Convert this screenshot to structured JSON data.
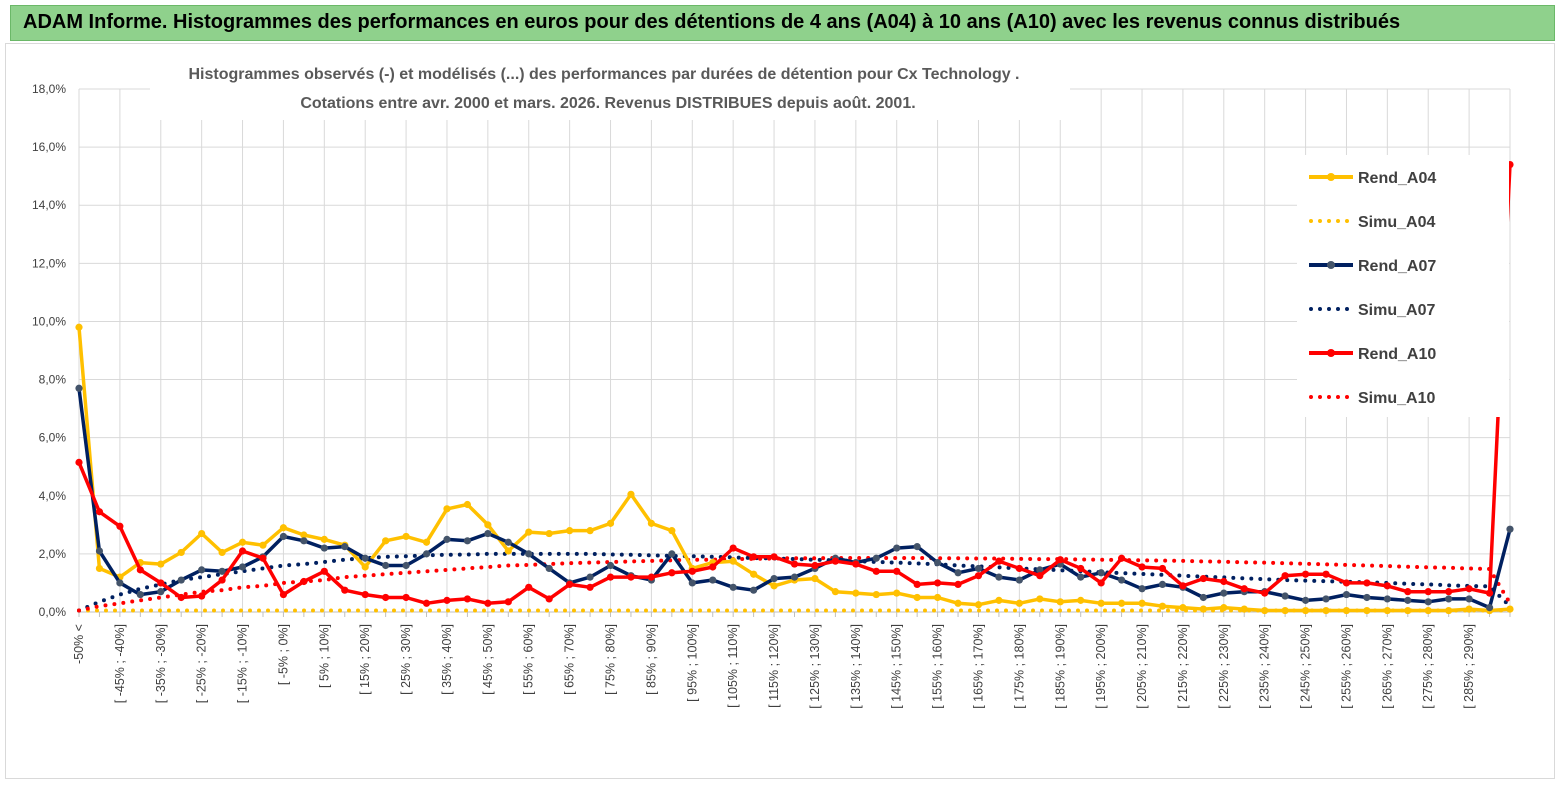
{
  "banner": {
    "text": "ADAM Informe. Histogrammes des performances en euros pour des détentions de 4 ans (A04) à 10 ans (A10) avec les revenus connus distribués"
  },
  "chart_data": {
    "type": "line",
    "title": "Histogrammes observés (-) et modélisés (...) des performances par durées de détention pour Cx Technology .",
    "subtitle": "Cotations entre avr. 2000 et mars. 2026. Revenus DISTRIBUES depuis août. 2001.",
    "ylim": [
      0,
      18
    ],
    "y_ticks": [
      "0,0%",
      "2,0%",
      "4,0%",
      "6,0%",
      "8,0%",
      "10,0%",
      "12,0%",
      "14,0%",
      "16,0%",
      "18,0%"
    ],
    "x_tick_labels": [
      "-50% <",
      "[ -45% ; -40%]",
      "[ -35% ; -30%]",
      "[ -25% ; -20%]",
      "[ -15% ; -10%]",
      "[ -5% ; 0%]",
      "[ 5% ; 10%]",
      "[ 15% ; 20%]",
      "[ 25% ; 30%]",
      "[ 35% ; 40%]",
      "[ 45% ; 50%]",
      "[ 55% ; 60%]",
      "[ 65% ; 70%]",
      "[ 75% ; 80%]",
      "[ 85% ; 90%]",
      "[ 95% ; 100%]",
      "[ 105% ; 110%]",
      "[ 115% ; 120%]",
      "[ 125% ; 130%]",
      "[ 135% ; 140%]",
      "[ 145% ; 150%]",
      "[ 155% ; 160%]",
      "[ 165% ; 170%]",
      "[ 175% ; 180%]",
      "[ 185% ; 190%]",
      "[ 195% ; 200%]",
      "[ 205% ; 210%]",
      "[ 215% ; 220%]",
      "[ 225% ; 230%]",
      "[ 235% ; 240%]",
      "[ 245% ; 250%]",
      "[ 255% ; 260%]",
      "[ 265% ; 270%]",
      "[ 275% ; 280%]",
      "[ 285% ; 290%]"
    ],
    "num_categories": 71,
    "grid": true,
    "legend_position": "top-right",
    "series": [
      {
        "name": "Rend_A04",
        "style": "solid",
        "color": "#ffc000",
        "values": [
          9.8,
          1.5,
          1.2,
          1.7,
          1.65,
          2.05,
          2.7,
          2.05,
          2.4,
          2.3,
          2.9,
          2.65,
          2.5,
          2.3,
          1.55,
          2.45,
          2.6,
          2.4,
          3.55,
          3.7,
          3.0,
          2.1,
          2.75,
          2.7,
          2.8,
          2.8,
          3.05,
          4.05,
          3.05,
          2.8,
          1.5,
          1.7,
          1.75,
          1.3,
          0.9,
          1.1,
          1.15,
          0.7,
          0.65,
          0.6,
          0.65,
          0.5,
          0.5,
          0.3,
          0.25,
          0.4,
          0.3,
          0.45,
          0.35,
          0.4,
          0.3,
          0.3,
          0.3,
          0.2,
          0.15,
          0.1,
          0.15,
          0.1,
          0.05,
          0.05,
          0.05,
          0.05,
          0.05,
          0.05,
          0.05,
          0.05,
          0.05,
          0.05,
          0.1,
          0.05,
          0.1
        ]
      },
      {
        "name": "Simu_A04",
        "style": "dotted",
        "color": "#ffc000",
        "values": [
          0.05,
          0.05,
          0.05,
          0.05,
          0.05,
          0.05,
          0.05,
          0.05,
          0.05,
          0.05,
          0.05,
          0.05,
          0.05,
          0.05,
          0.05,
          0.05,
          0.05,
          0.05,
          0.05,
          0.05,
          0.05,
          0.05,
          0.05,
          0.05,
          0.05,
          0.05,
          0.05,
          0.05,
          0.05,
          0.05,
          0.05,
          0.05,
          0.05,
          0.05,
          0.05,
          0.05,
          0.05,
          0.05,
          0.05,
          0.05,
          0.05,
          0.05,
          0.05,
          0.05,
          0.05,
          0.05,
          0.05,
          0.05,
          0.05,
          0.05,
          0.05,
          0.05,
          0.05,
          0.05,
          0.05,
          0.05,
          0.05,
          0.05,
          0.05,
          0.05,
          0.05,
          0.05,
          0.05,
          0.05,
          0.05,
          0.05,
          0.05,
          0.05,
          0.05,
          0.05,
          0.05
        ]
      },
      {
        "name": "Rend_A07",
        "style": "solid",
        "color": "#002060",
        "values": [
          7.7,
          2.1,
          1.0,
          0.6,
          0.7,
          1.1,
          1.45,
          1.4,
          1.55,
          1.9,
          2.6,
          2.45,
          2.2,
          2.25,
          1.85,
          1.6,
          1.6,
          2.0,
          2.5,
          2.45,
          2.7,
          2.4,
          2.0,
          1.5,
          1.0,
          1.2,
          1.6,
          1.25,
          1.1,
          2.0,
          1.0,
          1.1,
          0.85,
          0.75,
          1.15,
          1.2,
          1.5,
          1.85,
          1.7,
          1.85,
          2.2,
          2.25,
          1.7,
          1.35,
          1.5,
          1.2,
          1.1,
          1.45,
          1.65,
          1.2,
          1.35,
          1.1,
          0.8,
          0.95,
          0.85,
          0.5,
          0.65,
          0.7,
          0.7,
          0.55,
          0.4,
          0.45,
          0.6,
          0.5,
          0.45,
          0.4,
          0.35,
          0.45,
          0.45,
          0.15,
          2.85
        ]
      },
      {
        "name": "Simu_A07",
        "style": "dotted",
        "color": "#002060",
        "values": [
          0.05,
          0.35,
          0.6,
          0.8,
          0.95,
          1.1,
          1.2,
          1.3,
          1.4,
          1.5,
          1.6,
          1.65,
          1.72,
          1.8,
          1.85,
          1.9,
          1.92,
          1.95,
          1.97,
          1.98,
          2.0,
          2.0,
          2.0,
          2.0,
          2.0,
          2.0,
          1.98,
          1.97,
          1.95,
          1.93,
          1.92,
          1.9,
          1.88,
          1.86,
          1.84,
          1.82,
          1.8,
          1.78,
          1.75,
          1.72,
          1.7,
          1.67,
          1.64,
          1.6,
          1.57,
          1.54,
          1.5,
          1.47,
          1.44,
          1.4,
          1.37,
          1.34,
          1.31,
          1.28,
          1.25,
          1.22,
          1.19,
          1.16,
          1.13,
          1.1,
          1.08,
          1.06,
          1.04,
          1.02,
          1.0,
          0.97,
          0.95,
          0.92,
          0.9,
          0.88,
          0.2
        ]
      },
      {
        "name": "Rend_A10",
        "style": "solid",
        "color": "#ff0000",
        "values": [
          5.15,
          3.45,
          2.95,
          1.45,
          1.0,
          0.5,
          0.55,
          1.1,
          2.1,
          1.85,
          0.6,
          1.05,
          1.4,
          0.75,
          0.6,
          0.5,
          0.5,
          0.3,
          0.4,
          0.45,
          0.3,
          0.35,
          0.85,
          0.45,
          0.95,
          0.85,
          1.2,
          1.2,
          1.2,
          1.35,
          1.4,
          1.55,
          2.2,
          1.9,
          1.9,
          1.65,
          1.6,
          1.75,
          1.65,
          1.4,
          1.4,
          0.95,
          1.0,
          0.95,
          1.25,
          1.75,
          1.5,
          1.25,
          1.8,
          1.5,
          1.0,
          1.85,
          1.55,
          1.5,
          0.9,
          1.15,
          1.05,
          0.8,
          0.65,
          1.25,
          1.3,
          1.3,
          1.0,
          1.0,
          0.9,
          0.7,
          0.7,
          0.7,
          0.8,
          0.65,
          15.4
        ]
      },
      {
        "name": "Simu_A10",
        "style": "dotted",
        "color": "#ff0000",
        "values": [
          0.05,
          0.2,
          0.3,
          0.4,
          0.5,
          0.6,
          0.7,
          0.75,
          0.85,
          0.9,
          1.0,
          1.05,
          1.1,
          1.2,
          1.25,
          1.3,
          1.35,
          1.4,
          1.45,
          1.5,
          1.55,
          1.6,
          1.62,
          1.65,
          1.68,
          1.7,
          1.72,
          1.74,
          1.76,
          1.78,
          1.8,
          1.8,
          1.82,
          1.83,
          1.84,
          1.85,
          1.85,
          1.86,
          1.86,
          1.86,
          1.86,
          1.86,
          1.85,
          1.85,
          1.84,
          1.84,
          1.83,
          1.82,
          1.82,
          1.81,
          1.8,
          1.79,
          1.78,
          1.77,
          1.76,
          1.74,
          1.73,
          1.71,
          1.7,
          1.68,
          1.66,
          1.64,
          1.62,
          1.6,
          1.58,
          1.56,
          1.54,
          1.52,
          1.5,
          1.48,
          0.3
        ]
      }
    ]
  }
}
